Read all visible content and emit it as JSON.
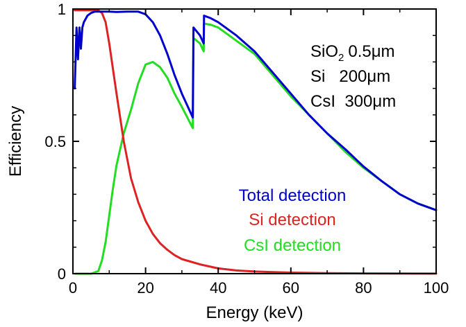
{
  "chart_data": {
    "type": "line",
    "xlabel": "Energy (keV)",
    "ylabel": "Efficiency",
    "xlim": [
      0,
      100
    ],
    "ylim": [
      0,
      1
    ],
    "x_ticks": [
      0,
      20,
      40,
      60,
      80,
      100
    ],
    "x_tick_labels": [
      "0",
      "20",
      "40",
      "60",
      "80",
      "100"
    ],
    "y_ticks": [
      0,
      0.5,
      1
    ],
    "y_tick_labels": [
      "0",
      "0.5",
      "1"
    ],
    "grid": false,
    "legend_placement": "lower-right",
    "annotation": {
      "sio2": "SiO",
      "sio2_sub": "2",
      "sio2_thickness": "0.5μm",
      "si": "Si   200μm",
      "csi": "CsI  300μm"
    },
    "series": [
      {
        "name": "Total detection",
        "color": "#0000cc",
        "x": [
          0.5,
          1.0,
          1.4,
          1.8,
          2.2,
          2.6,
          3.0,
          4.0,
          5.0,
          6.0,
          7.0,
          8.0,
          10.0,
          12.0,
          15.0,
          18.0,
          20.0,
          22.0,
          24.0,
          26.0,
          28.0,
          30.0,
          33.0,
          33.2,
          35.0,
          36.0,
          36.1,
          38.0,
          40.0,
          45.0,
          50.0,
          55.0,
          60.0,
          65.0,
          70.0,
          75.0,
          80.0,
          85.0,
          90.0,
          95.0,
          100.0
        ],
        "y": [
          0.7,
          0.93,
          0.81,
          0.93,
          0.85,
          0.93,
          0.95,
          0.975,
          0.985,
          0.99,
          0.99,
          0.99,
          0.99,
          0.989,
          0.99,
          0.99,
          0.98,
          0.95,
          0.9,
          0.83,
          0.75,
          0.68,
          0.59,
          0.93,
          0.9,
          0.87,
          0.975,
          0.965,
          0.95,
          0.9,
          0.84,
          0.76,
          0.68,
          0.6,
          0.53,
          0.47,
          0.405,
          0.35,
          0.3,
          0.265,
          0.24
        ]
      },
      {
        "name": "Si detection",
        "color": "#dd2222",
        "x": [
          0.5,
          1.0,
          2.0,
          3.0,
          4.0,
          5.0,
          6.0,
          7.0,
          8.0,
          9.0,
          10.0,
          12.0,
          14.0,
          16.0,
          18.0,
          20.0,
          22.0,
          24.0,
          26.0,
          28.0,
          30.0,
          35.0,
          40.0,
          45.0,
          50.0,
          60.0,
          70.0,
          80.0,
          90.0,
          100.0
        ],
        "y": [
          0.995,
          0.995,
          0.995,
          0.995,
          0.995,
          0.995,
          0.995,
          0.995,
          0.985,
          0.95,
          0.87,
          0.68,
          0.5,
          0.36,
          0.27,
          0.2,
          0.15,
          0.115,
          0.09,
          0.07,
          0.055,
          0.035,
          0.02,
          0.012,
          0.008,
          0.004,
          0.002,
          0.001,
          0.0005,
          0.0002
        ]
      },
      {
        "name": "CsI detection",
        "color": "#22dd22",
        "x": [
          0.5,
          5.0,
          6.0,
          7.0,
          8.0,
          9.0,
          10.0,
          11.0,
          12.0,
          13.0,
          14.0,
          16.0,
          18.0,
          20.0,
          22.0,
          24.0,
          26.0,
          28.0,
          30.0,
          33.0,
          33.2,
          35.0,
          36.0,
          36.1,
          38.0,
          40.0,
          45.0,
          50.0,
          55.0,
          60.0,
          65.0,
          70.0,
          75.0,
          80.0,
          85.0,
          90.0,
          95.0,
          100.0
        ],
        "y": [
          0.0,
          0.0,
          0.005,
          0.01,
          0.05,
          0.12,
          0.22,
          0.32,
          0.41,
          0.47,
          0.53,
          0.62,
          0.72,
          0.79,
          0.8,
          0.78,
          0.74,
          0.68,
          0.63,
          0.55,
          0.89,
          0.87,
          0.84,
          0.945,
          0.94,
          0.93,
          0.88,
          0.83,
          0.75,
          0.67,
          0.6,
          0.53,
          0.46,
          0.4,
          0.35,
          0.3,
          0.265,
          0.24
        ]
      }
    ]
  }
}
